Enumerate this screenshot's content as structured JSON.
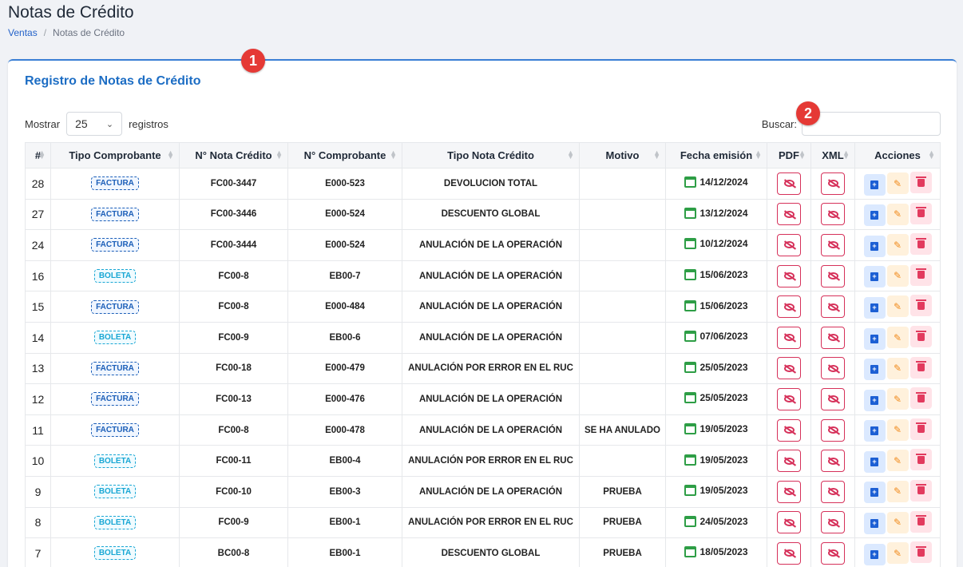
{
  "page": {
    "title": "Notas de Crédito"
  },
  "breadcrumb": {
    "parent": "Ventas",
    "separator": "/",
    "current": "Notas de Crédito"
  },
  "card": {
    "title": "Registro de Notas de Crédito"
  },
  "markers": [
    "1",
    "2"
  ],
  "length_control": {
    "prefix": "Mostrar",
    "value": "25",
    "suffix": "registros"
  },
  "search": {
    "label": "Buscar:",
    "value": ""
  },
  "table": {
    "headers": [
      "#",
      "Tipo Comprobante",
      "N° Nota Crédito",
      "N° Comprobante",
      "Tipo Nota Crédito",
      "Motivo",
      "Fecha emisión",
      "PDF",
      "XML",
      "Acciones"
    ],
    "rows": [
      {
        "id": "28",
        "tipo": "FACTURA",
        "nota": "FC00-3447",
        "comp": "E000-523",
        "tipo_nota": "DEVOLUCION TOTAL",
        "motivo": "",
        "fecha": "14/12/2024"
      },
      {
        "id": "27",
        "tipo": "FACTURA",
        "nota": "FC00-3446",
        "comp": "E000-524",
        "tipo_nota": "DESCUENTO GLOBAL",
        "motivo": "",
        "fecha": "13/12/2024"
      },
      {
        "id": "24",
        "tipo": "FACTURA",
        "nota": "FC00-3444",
        "comp": "E000-524",
        "tipo_nota": "ANULACIÓN DE LA OPERACIÓN",
        "motivo": "",
        "fecha": "10/12/2024"
      },
      {
        "id": "16",
        "tipo": "BOLETA",
        "nota": "FC00-8",
        "comp": "EB00-7",
        "tipo_nota": "ANULACIÓN DE LA OPERACIÓN",
        "motivo": "",
        "fecha": "15/06/2023"
      },
      {
        "id": "15",
        "tipo": "FACTURA",
        "nota": "FC00-8",
        "comp": "E000-484",
        "tipo_nota": "ANULACIÓN DE LA OPERACIÓN",
        "motivo": "",
        "fecha": "15/06/2023"
      },
      {
        "id": "14",
        "tipo": "BOLETA",
        "nota": "FC00-9",
        "comp": "EB00-6",
        "tipo_nota": "ANULACIÓN DE LA OPERACIÓN",
        "motivo": "",
        "fecha": "07/06/2023"
      },
      {
        "id": "13",
        "tipo": "FACTURA",
        "nota": "FC00-18",
        "comp": "E000-479",
        "tipo_nota": "ANULACIÓN POR ERROR EN EL RUC",
        "motivo": "",
        "fecha": "25/05/2023"
      },
      {
        "id": "12",
        "tipo": "FACTURA",
        "nota": "FC00-13",
        "comp": "E000-476",
        "tipo_nota": "ANULACIÓN DE LA OPERACIÓN",
        "motivo": "",
        "fecha": "25/05/2023"
      },
      {
        "id": "11",
        "tipo": "FACTURA",
        "nota": "FC00-8",
        "comp": "E000-478",
        "tipo_nota": "ANULACIÓN DE LA OPERACIÓN",
        "motivo": "SE HA ANULADO",
        "fecha": "19/05/2023"
      },
      {
        "id": "10",
        "tipo": "BOLETA",
        "nota": "FC00-11",
        "comp": "EB00-4",
        "tipo_nota": "ANULACIÓN POR ERROR EN EL RUC",
        "motivo": "",
        "fecha": "19/05/2023"
      },
      {
        "id": "9",
        "tipo": "BOLETA",
        "nota": "FC00-10",
        "comp": "EB00-3",
        "tipo_nota": "ANULACIÓN DE LA OPERACIÓN",
        "motivo": "PRUEBA",
        "fecha": "19/05/2023"
      },
      {
        "id": "8",
        "tipo": "BOLETA",
        "nota": "FC00-9",
        "comp": "EB00-1",
        "tipo_nota": "ANULACIÓN POR ERROR EN EL RUC",
        "motivo": "PRUEBA",
        "fecha": "24/05/2023"
      },
      {
        "id": "7",
        "tipo": "BOLETA",
        "nota": "BC00-8",
        "comp": "EB00-1",
        "tipo_nota": "DESCUENTO GLOBAL",
        "motivo": "PRUEBA",
        "fecha": "18/05/2023"
      }
    ]
  },
  "colors": {
    "accent": "#1c6dc4",
    "factura": "#1c5fb8",
    "boleta": "#19a7d4",
    "danger": "#d6315a",
    "calendar": "#2e9e46",
    "marker": "#e53935"
  },
  "icons": {
    "pdf": "eye-slash-icon",
    "xml": "eye-slash-icon",
    "add": "plus-square-icon",
    "edit": "pencil-icon",
    "delete": "trash-icon",
    "date": "calendar-icon",
    "select": "chevron-down-icon",
    "sort": "sort-icon"
  }
}
